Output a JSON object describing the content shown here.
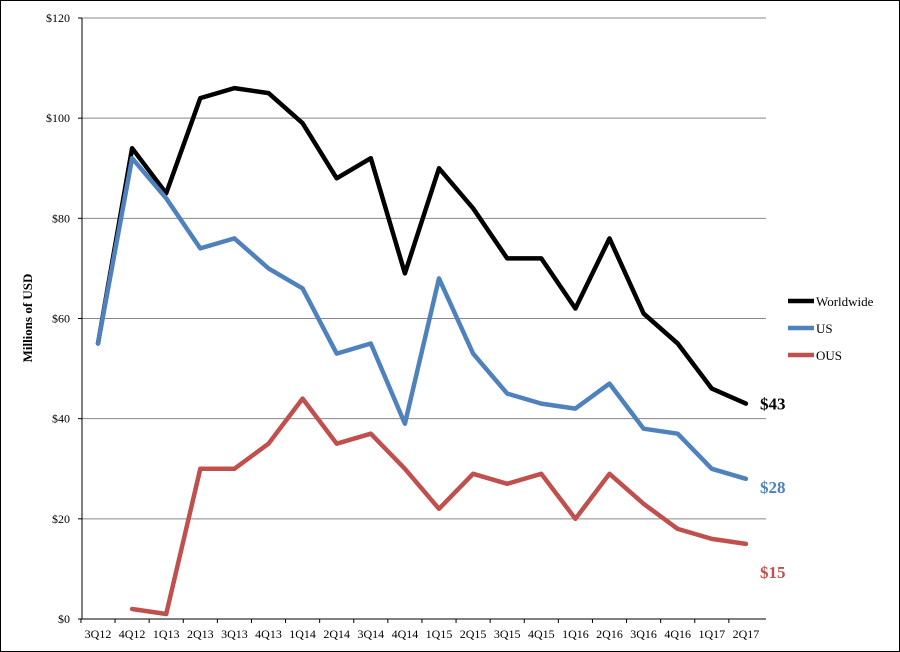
{
  "chart_data": {
    "type": "line",
    "ylabel": "Millions of USD",
    "xlabel": "",
    "title": "",
    "ylim": [
      0,
      120
    ],
    "yticks": [
      0,
      20,
      40,
      60,
      80,
      100,
      120
    ],
    "ytick_labels": [
      "$0",
      "$20",
      "$40",
      "$60",
      "$80",
      "$100",
      "$120"
    ],
    "grid": "horizontal",
    "legend_position": "right",
    "categories": [
      "3Q12",
      "4Q12",
      "1Q13",
      "2Q13",
      "3Q13",
      "4Q13",
      "1Q14",
      "2Q14",
      "3Q14",
      "4Q14",
      "1Q15",
      "2Q15",
      "3Q15",
      "4Q15",
      "1Q16",
      "2Q16",
      "3Q16",
      "4Q16",
      "1Q17",
      "2Q17"
    ],
    "series": [
      {
        "name": "Worldwide",
        "color": "#000000",
        "values": [
          55,
          94,
          85,
          104,
          106,
          105,
          99,
          88,
          92,
          69,
          90,
          82,
          72,
          72,
          62,
          76,
          61,
          55,
          46,
          43
        ],
        "end_label": "$43"
      },
      {
        "name": "US",
        "color": "#4f81bd",
        "values": [
          55,
          92,
          84,
          74,
          76,
          70,
          66,
          53,
          55,
          39,
          68,
          53,
          45,
          43,
          42,
          47,
          38,
          37,
          30,
          28
        ],
        "end_label": "$28"
      },
      {
        "name": "OUS",
        "color": "#c0504d",
        "values": [
          null,
          2,
          1,
          30,
          30,
          35,
          44,
          35,
          37,
          30,
          22,
          29,
          27,
          29,
          20,
          29,
          23,
          18,
          16,
          15
        ],
        "end_label": "$15"
      }
    ]
  }
}
